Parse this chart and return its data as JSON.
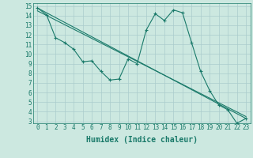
{
  "title": "",
  "xlabel": "Humidex (Indice chaleur)",
  "background_color": "#cce8e0",
  "grid_color": "#aacccc",
  "line_color": "#1a7a6a",
  "xlim": [
    -0.5,
    23.5
  ],
  "ylim": [
    2.8,
    15.3
  ],
  "xticks": [
    0,
    1,
    2,
    3,
    4,
    5,
    6,
    7,
    8,
    9,
    10,
    11,
    12,
    13,
    14,
    15,
    16,
    17,
    18,
    19,
    20,
    21,
    22,
    23
  ],
  "yticks": [
    3,
    4,
    5,
    6,
    7,
    8,
    9,
    10,
    11,
    12,
    13,
    14,
    15
  ],
  "series1_x": [
    0,
    1,
    2,
    3,
    4,
    5,
    6,
    7,
    8,
    9,
    10,
    11,
    12,
    13,
    14,
    15,
    16,
    17,
    18,
    19,
    20,
    21,
    22,
    23
  ],
  "series1_y": [
    14.8,
    14.1,
    11.7,
    11.2,
    10.5,
    9.2,
    9.3,
    8.2,
    7.3,
    7.4,
    9.5,
    9.0,
    12.5,
    14.2,
    13.5,
    14.6,
    14.3,
    11.2,
    8.2,
    6.2,
    4.7,
    4.2,
    2.8,
    3.3
  ],
  "series2_x": [
    0,
    23
  ],
  "series2_y": [
    14.8,
    3.3
  ],
  "series3_x": [
    0,
    23
  ],
  "series3_y": [
    14.5,
    3.5
  ],
  "font_size_tick": 5.5,
  "font_size_label": 7
}
